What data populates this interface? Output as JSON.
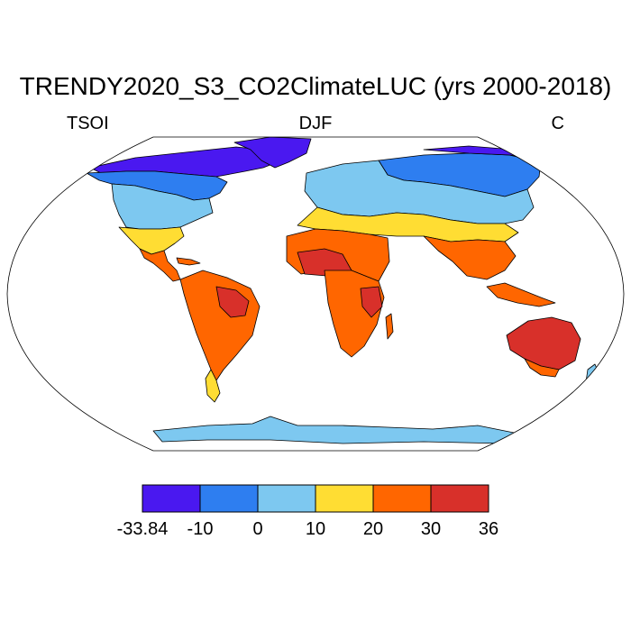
{
  "title": "TRENDY2020_S3_CO2ClimateLUC (yrs 2000-2018)",
  "variable": "TSOI",
  "season": "DJF",
  "units": "C",
  "colorbar": {
    "ticks": [
      "-33.84",
      "-10",
      "0",
      "10",
      "20",
      "30",
      "36"
    ],
    "bins": [
      {
        "from": -33.84,
        "to": -10,
        "color": "#4a18f0"
      },
      {
        "from": -10,
        "to": 0,
        "color": "#2e7ef0"
      },
      {
        "from": 0,
        "to": 10,
        "color": "#7dc8f0"
      },
      {
        "from": 10,
        "to": 20,
        "color": "#ffdd33"
      },
      {
        "from": 20,
        "to": 30,
        "color": "#ff6600"
      },
      {
        "from": 30,
        "to": 36,
        "color": "#d8302a"
      }
    ]
  }
}
